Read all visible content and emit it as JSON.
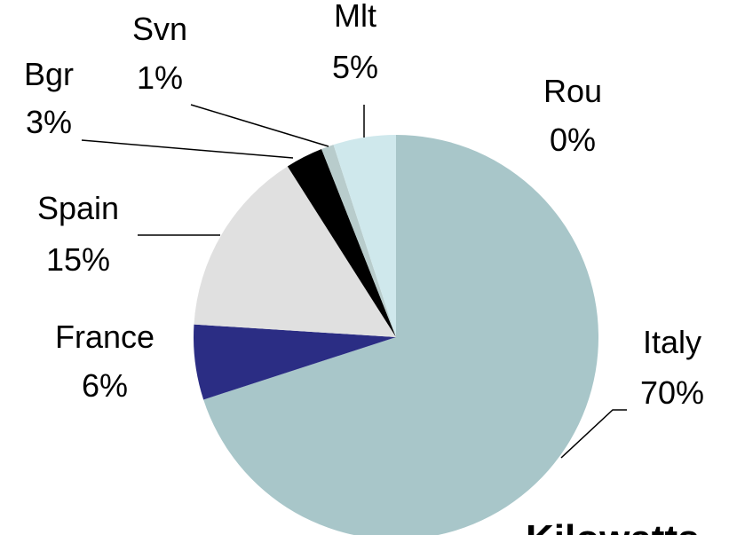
{
  "chart_data": {
    "type": "pie",
    "categories": [
      "Italy",
      "France",
      "Spain",
      "Bgr",
      "Svn",
      "Mlt",
      "Rou"
    ],
    "values": [
      70,
      6,
      15,
      3,
      1,
      5,
      0
    ],
    "value_labels": [
      "70%",
      "6%",
      "15%",
      "3%",
      "1%",
      "5%",
      "0%"
    ],
    "colors": [
      "#a8c6c9",
      "#2b2d84",
      "#e0e0e0",
      "#000000",
      "#b8cccc",
      "#cfe8ec",
      "#d8d8d8"
    ],
    "subtitle": "Kilowatts"
  }
}
